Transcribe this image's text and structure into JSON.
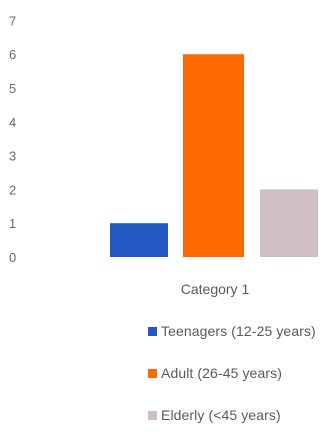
{
  "chart_data": {
    "type": "bar",
    "categories": [
      "Category 1"
    ],
    "series": [
      {
        "name": "Teenagers (12-25 years)",
        "values": [
          1
        ],
        "color": "#2458c2"
      },
      {
        "name": "Adult (26-45 years)",
        "values": [
          6
        ],
        "color": "#ff6a00"
      },
      {
        "name": "Elderly (<45 years)",
        "values": [
          2
        ],
        "color": "#cdbfc3"
      }
    ],
    "yticks": [
      "0",
      "1",
      "2",
      "3",
      "4",
      "5",
      "6",
      "7"
    ],
    "ylim": [
      0,
      7
    ],
    "grid": false,
    "legend": "bottom"
  }
}
